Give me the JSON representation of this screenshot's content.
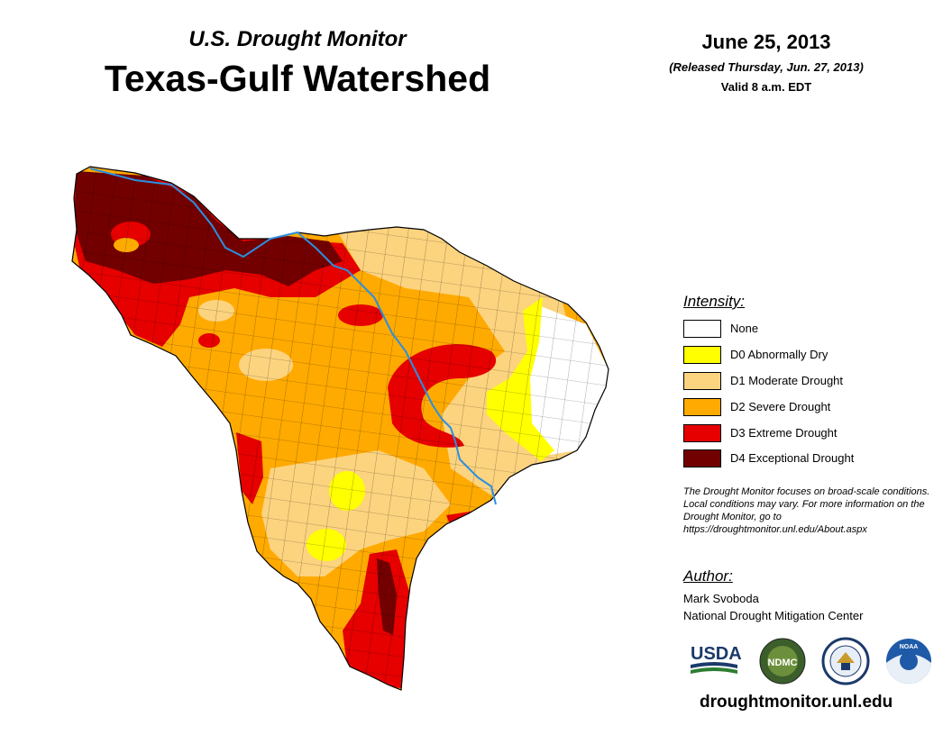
{
  "header": {
    "subtitle": "U.S. Drought Monitor",
    "title": "Texas-Gulf Watershed",
    "date": "June 25, 2013",
    "released": "(Released Thursday, Jun. 27, 2013)",
    "valid": "Valid 8 a.m. EDT"
  },
  "legend": {
    "title": "Intensity:",
    "items": [
      {
        "label": "None",
        "color": "#ffffff"
      },
      {
        "label": "D0 Abnormally Dry",
        "color": "#ffff00"
      },
      {
        "label": "D1 Moderate Drought",
        "color": "#fcd37f"
      },
      {
        "label": "D2 Severe Drought",
        "color": "#ffaa00"
      },
      {
        "label": "D3 Extreme Drought",
        "color": "#e60000"
      },
      {
        "label": "D4 Exceptional Drought",
        "color": "#730000"
      }
    ]
  },
  "note": "The Drought Monitor focuses on broad-scale conditions. Local conditions may vary. For more information on the Drought Monitor, go to https://droughtmonitor.unl.edu/About.aspx",
  "author": {
    "heading": "Author:",
    "name": "Mark Svoboda",
    "org": "National Drought Mitigation Center"
  },
  "logos": {
    "usda": "USDA",
    "ndmc": "NDMC",
    "noaa": "NOAA"
  },
  "url": "droughtmonitor.unl.edu",
  "colors": {
    "river": "#2b8fe0",
    "county_line": "#000000"
  }
}
